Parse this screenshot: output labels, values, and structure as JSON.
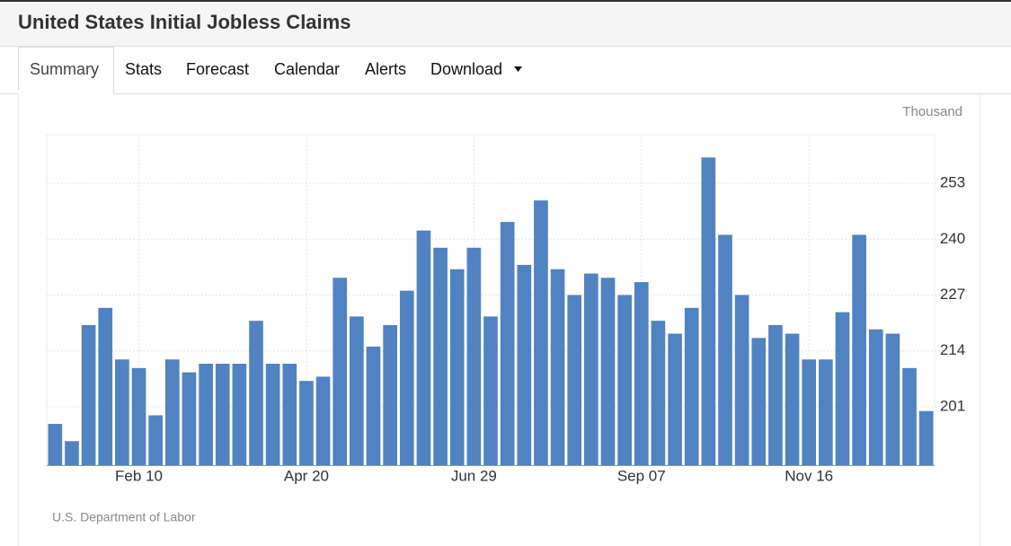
{
  "header": {
    "title": "United States Initial Jobless Claims"
  },
  "tabs": [
    "Summary",
    "Stats",
    "Forecast",
    "Calendar",
    "Alerts",
    "Download"
  ],
  "chart_data": {
    "type": "bar",
    "unit": "Thousand",
    "source": "U.S. Department of Labor",
    "color": "#5182c1",
    "categories": [
      null,
      null,
      null,
      null,
      null,
      "Feb 10",
      null,
      null,
      null,
      null,
      null,
      null,
      null,
      null,
      null,
      "Apr 20",
      null,
      null,
      null,
      null,
      null,
      null,
      null,
      null,
      null,
      "Jun 29",
      null,
      null,
      null,
      null,
      null,
      null,
      null,
      null,
      null,
      "Sep 07",
      null,
      null,
      null,
      null,
      null,
      null,
      null,
      null,
      null,
      "Nov 16",
      null,
      null,
      null,
      null,
      null,
      null,
      null
    ],
    "values": [
      197,
      193,
      220,
      224,
      212,
      210,
      199,
      212,
      209,
      211,
      211,
      211,
      221,
      211,
      211,
      207,
      208,
      231,
      222,
      215,
      220,
      228,
      242,
      238,
      233,
      238,
      222,
      244,
      234,
      249,
      233,
      227,
      232,
      231,
      227,
      230,
      221,
      218,
      224,
      259,
      241,
      227,
      217,
      220,
      218,
      212,
      212,
      223,
      241,
      219,
      218,
      210,
      200
    ],
    "ylim": [
      187.4,
      264.3
    ],
    "yticks": [
      201,
      214,
      227,
      240,
      253
    ],
    "grid": true
  }
}
